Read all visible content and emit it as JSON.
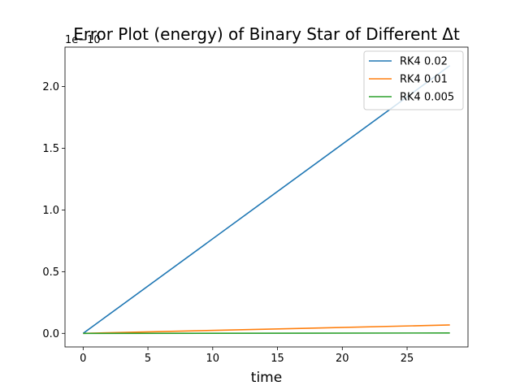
{
  "chart_data": {
    "type": "line",
    "title": "Error Plot (energy) of Binary Star of Different Δt",
    "xlabel": "time",
    "ylabel": "",
    "y_offset_text": "1e−10",
    "xlim": [
      -1.4,
      29.7
    ],
    "ylim": [
      -0.11,
      2.32
    ],
    "x_ticks": [
      0,
      5,
      10,
      15,
      20,
      25
    ],
    "x_tick_labels": [
      "0",
      "5",
      "10",
      "15",
      "20",
      "25"
    ],
    "y_ticks": [
      0.0,
      0.5,
      1.0,
      1.5,
      2.0
    ],
    "y_tick_labels": [
      "0.0",
      "0.5",
      "1.0",
      "1.5",
      "2.0"
    ],
    "grid": false,
    "legend_position": "top-right",
    "colors": [
      "#1f77b4",
      "#ff7f0e",
      "#2ca02c"
    ],
    "series": [
      {
        "name": "RK4 0.02",
        "x": [
          0,
          28.3
        ],
        "y": [
          0.0,
          2.17
        ]
      },
      {
        "name": "RK4 0.01",
        "x": [
          0,
          28.3
        ],
        "y": [
          0.0,
          0.068
        ]
      },
      {
        "name": "RK4 0.005",
        "x": [
          0,
          28.3
        ],
        "y": [
          0.0,
          0.003
        ]
      }
    ]
  }
}
